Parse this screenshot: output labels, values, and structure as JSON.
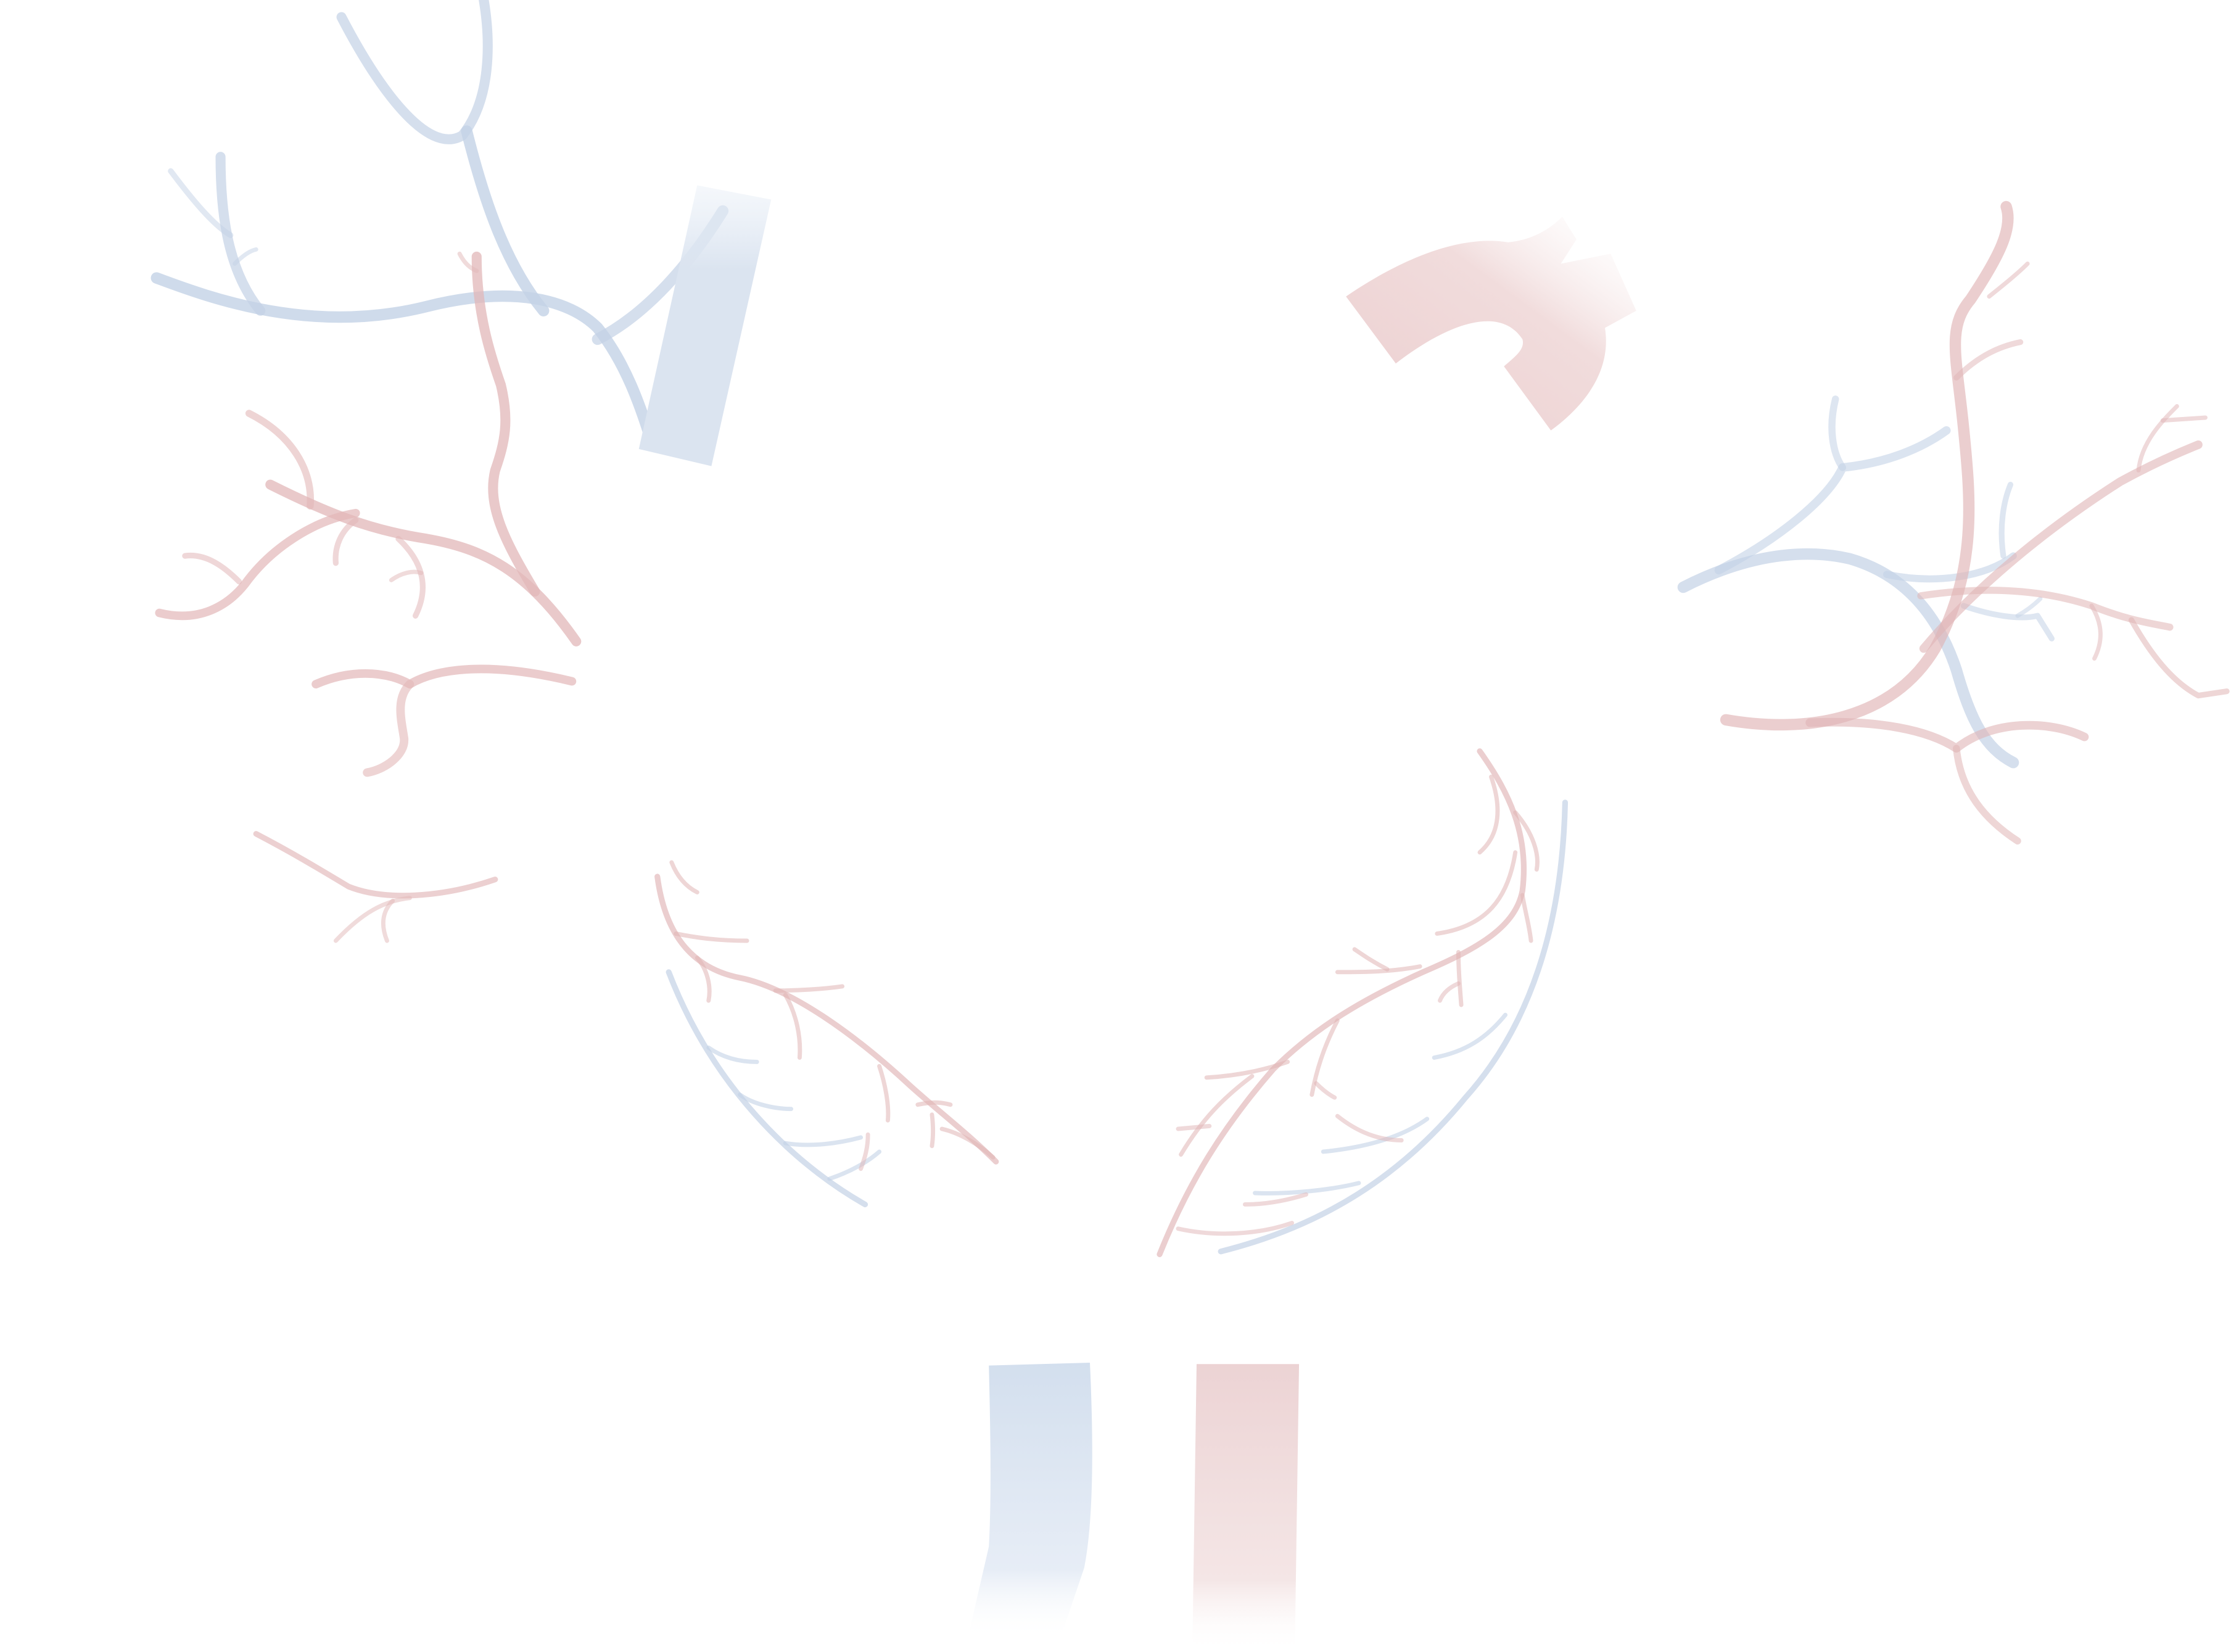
{
  "illustration": {
    "subject": "vascular-tree",
    "colors": {
      "vein": "#a9bdd9",
      "artery": "#d9a5a7",
      "vein_fill": "#c8d6e8",
      "artery_fill": "#e8c6c7",
      "background": "#ffffff"
    }
  }
}
